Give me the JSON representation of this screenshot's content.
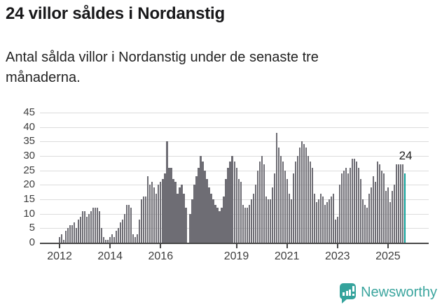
{
  "header": {
    "title": "24 villor såldes i Nordanstig",
    "subtitle": "Antal sålda villor i Nordanstig under de senaste tre\nmånaderna."
  },
  "chart_data": {
    "type": "bar",
    "title": "24 villor såldes i Nordanstig",
    "xlabel": "",
    "ylabel": "",
    "x_start_month": "2011-04",
    "x_frequency": "monthly",
    "ylim": [
      0,
      45
    ],
    "y_tick_labels": [
      "0",
      "5",
      "10",
      "15",
      "20",
      "25",
      "30",
      "35",
      "40",
      "45"
    ],
    "x_tick_labels": [
      "2012",
      "2014",
      "2016",
      "2019",
      "2021",
      "2023",
      "2025"
    ],
    "grid": "horizontal",
    "trailing_empty_slots": 10,
    "values": [
      0,
      0,
      0,
      0,
      0,
      0,
      0,
      0,
      0,
      2,
      3,
      1,
      4,
      5,
      6,
      6,
      7,
      5,
      8,
      9,
      11,
      11,
      9,
      10,
      11,
      12,
      12,
      12,
      11,
      5,
      2,
      1,
      1,
      2,
      3,
      2,
      4,
      5,
      7,
      8,
      10,
      13,
      13,
      12,
      3,
      2,
      3,
      8,
      15,
      16,
      16,
      23,
      20,
      21,
      19,
      17,
      20,
      21,
      22,
      24,
      35,
      26,
      26,
      22,
      21,
      17,
      19,
      20,
      17,
      12,
      0,
      10,
      15,
      20,
      23,
      26,
      30,
      28,
      25,
      22,
      19,
      17,
      15,
      13,
      12,
      11,
      12,
      16,
      22,
      26,
      28,
      30,
      28,
      26,
      22,
      21,
      13,
      12,
      12,
      13,
      15,
      17,
      20,
      25,
      28,
      30,
      27,
      16,
      15,
      15,
      19,
      24,
      38,
      33,
      30,
      28,
      25,
      22,
      17,
      15,
      24,
      28,
      30,
      33,
      35,
      34,
      33,
      30,
      28,
      26,
      17,
      14,
      15,
      17,
      16,
      13,
      14,
      15,
      16,
      17,
      8,
      9,
      20,
      24,
      25,
      26,
      24,
      26,
      29,
      29,
      28,
      26,
      22,
      15,
      13,
      12,
      17,
      19,
      23,
      21,
      28,
      27,
      25,
      24,
      18,
      19,
      14,
      18,
      20,
      27,
      27,
      27,
      27,
      24
    ],
    "highlight_last": true,
    "highlight_value_label": "24",
    "colors": {
      "bar": "#6e6d74",
      "highlight": "#0a9e96",
      "gridline": "#dcdcdc",
      "axis": "#474747"
    }
  },
  "footer": {
    "brand": "Newsworthy",
    "logo_icon": "bar-chart-speech-bubble-icon",
    "brand_color": "#3ba59e"
  }
}
